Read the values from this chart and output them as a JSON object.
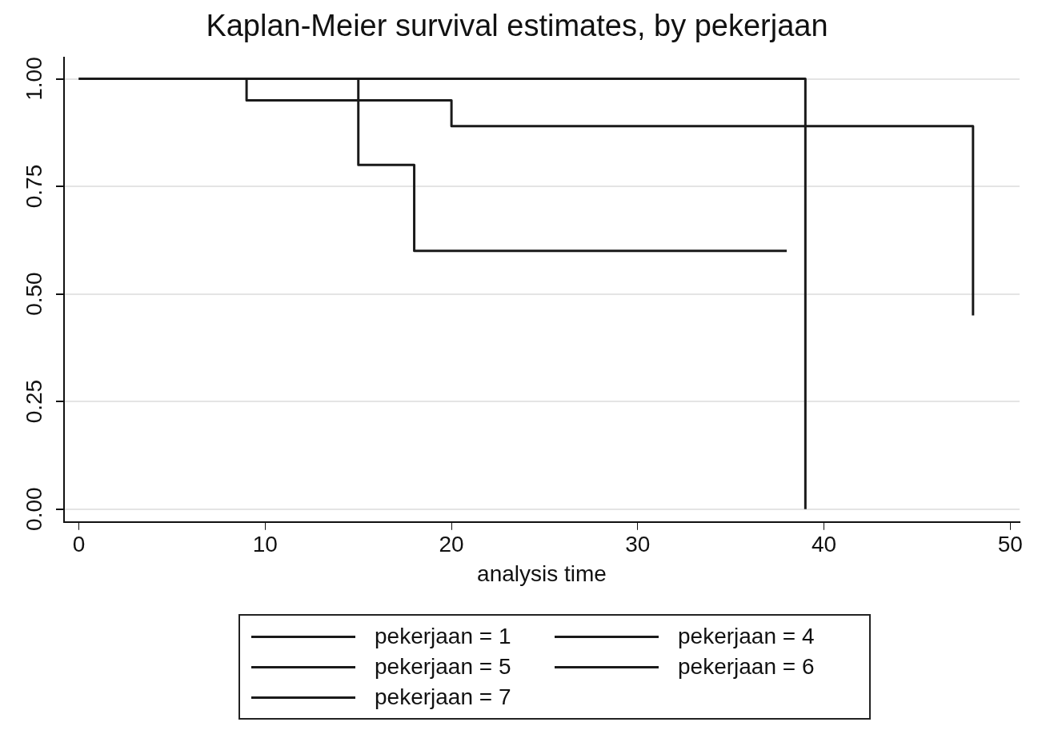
{
  "chart_data": {
    "type": "step",
    "title": "Kaplan-Meier survival estimates, by pekerjaan",
    "xlabel": "analysis time",
    "xlim": [
      -0.8,
      50.5
    ],
    "xticks": [
      0,
      10,
      20,
      30,
      40,
      50
    ],
    "ylim": [
      -0.03,
      1.05
    ],
    "yticks": [
      {
        "value": 0,
        "label": "0.00"
      },
      {
        "value": 0.25,
        "label": "0.25"
      },
      {
        "value": 0.5,
        "label": "0.50"
      },
      {
        "value": 0.75,
        "label": "0.75"
      },
      {
        "value": 1,
        "label": "1.00"
      }
    ],
    "grid": "y",
    "legend": "bottom",
    "line_style": "solid",
    "marker": "none",
    "series": [
      {
        "name": "pekerjaan = 1",
        "color": "#1a1a1a",
        "x": [
          0,
          39
        ],
        "values": [
          1,
          0
        ]
      },
      {
        "name": "pekerjaan = 4",
        "color": "#1a1a1a",
        "x": [
          0,
          9,
          20,
          48
        ],
        "values": [
          1,
          0.95,
          0.89,
          0.45
        ]
      },
      {
        "name": "pekerjaan = 5",
        "color": "#1a1a1a",
        "x": [
          0,
          15,
          18,
          38
        ],
        "values": [
          1,
          0.8,
          0.6,
          0.6
        ]
      },
      {
        "name": "pekerjaan = 6",
        "color": "#1a1a1a"
      },
      {
        "name": "pekerjaan = 7",
        "color": "#1a1a1a"
      }
    ]
  }
}
